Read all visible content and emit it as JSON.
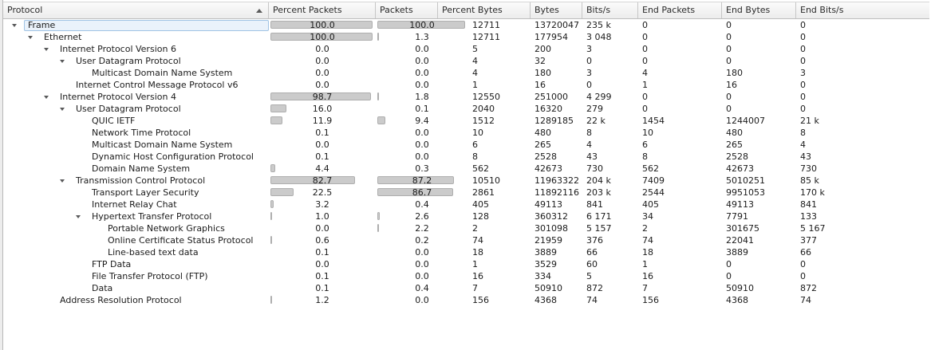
{
  "header": {
    "columns": [
      {
        "label": "Protocol",
        "sorted": "ascending"
      },
      {
        "label": "Percent Packets"
      },
      {
        "label": "Packets"
      },
      {
        "label": "Percent Bytes"
      },
      {
        "label": "Bytes"
      },
      {
        "label": "Bits/s"
      },
      {
        "label": "End Packets"
      },
      {
        "label": "End Bytes"
      },
      {
        "label": "End Bits/s"
      }
    ]
  },
  "colors": {
    "bar_fill": "#cbcbcb",
    "bar_border": "#aeaeae",
    "selection_fill": "#eaf2fb",
    "selection_border": "#a0c3e4",
    "header_border": "#c6c6c6"
  },
  "rows": [
    {
      "name": "Frame",
      "level": 0,
      "expander": true,
      "selected": true,
      "pct_packets": 100.0,
      "pct_packets_text": "100.0",
      "packets": "12711",
      "pct_bytes": 100.0,
      "pct_bytes_text": "100.0",
      "bytes": "13720047",
      "bits_s": "235 k",
      "end_packets": "0",
      "end_bytes": "0",
      "end_bits_s": "0"
    },
    {
      "name": "Ethernet",
      "level": 1,
      "expander": true,
      "selected": false,
      "pct_packets": 100.0,
      "pct_packets_text": "100.0",
      "packets": "12711",
      "pct_bytes": 1.3,
      "pct_bytes_text": "1.3",
      "bytes": "177954",
      "bits_s": "3 048",
      "end_packets": "0",
      "end_bytes": "0",
      "end_bits_s": "0"
    },
    {
      "name": "Internet Protocol Version 6",
      "level": 2,
      "expander": true,
      "selected": false,
      "pct_packets": 0.0,
      "pct_packets_text": "0.0",
      "packets": "5",
      "pct_bytes": 0.0,
      "pct_bytes_text": "0.0",
      "bytes": "200",
      "bits_s": "3",
      "end_packets": "0",
      "end_bytes": "0",
      "end_bits_s": "0"
    },
    {
      "name": "User Datagram Protocol",
      "level": 3,
      "expander": true,
      "selected": false,
      "pct_packets": 0.0,
      "pct_packets_text": "0.0",
      "packets": "4",
      "pct_bytes": 0.0,
      "pct_bytes_text": "0.0",
      "bytes": "32",
      "bits_s": "0",
      "end_packets": "0",
      "end_bytes": "0",
      "end_bits_s": "0"
    },
    {
      "name": "Multicast Domain Name System",
      "level": 4,
      "expander": false,
      "selected": false,
      "pct_packets": 0.0,
      "pct_packets_text": "0.0",
      "packets": "4",
      "pct_bytes": 0.0,
      "pct_bytes_text": "0.0",
      "bytes": "180",
      "bits_s": "3",
      "end_packets": "4",
      "end_bytes": "180",
      "end_bits_s": "3"
    },
    {
      "name": "Internet Control Message Protocol v6",
      "level": 3,
      "expander": false,
      "selected": false,
      "pct_packets": 0.0,
      "pct_packets_text": "0.0",
      "packets": "1",
      "pct_bytes": 0.0,
      "pct_bytes_text": "0.0",
      "bytes": "16",
      "bits_s": "0",
      "end_packets": "1",
      "end_bytes": "16",
      "end_bits_s": "0"
    },
    {
      "name": "Internet Protocol Version 4",
      "level": 2,
      "expander": true,
      "selected": false,
      "pct_packets": 98.7,
      "pct_packets_text": "98.7",
      "packets": "12550",
      "pct_bytes": 1.8,
      "pct_bytes_text": "1.8",
      "bytes": "251000",
      "bits_s": "4 299",
      "end_packets": "0",
      "end_bytes": "0",
      "end_bits_s": "0"
    },
    {
      "name": "User Datagram Protocol",
      "level": 3,
      "expander": true,
      "selected": false,
      "pct_packets": 16.0,
      "pct_packets_text": "16.0",
      "packets": "2040",
      "pct_bytes": 0.1,
      "pct_bytes_text": "0.1",
      "bytes": "16320",
      "bits_s": "279",
      "end_packets": "0",
      "end_bytes": "0",
      "end_bits_s": "0"
    },
    {
      "name": "QUIC IETF",
      "level": 4,
      "expander": false,
      "selected": false,
      "pct_packets": 11.9,
      "pct_packets_text": "11.9",
      "packets": "1512",
      "pct_bytes": 9.4,
      "pct_bytes_text": "9.4",
      "bytes": "1289185",
      "bits_s": "22 k",
      "end_packets": "1454",
      "end_bytes": "1244007",
      "end_bits_s": "21 k"
    },
    {
      "name": "Network Time Protocol",
      "level": 4,
      "expander": false,
      "selected": false,
      "pct_packets": 0.1,
      "pct_packets_text": "0.1",
      "packets": "10",
      "pct_bytes": 0.0,
      "pct_bytes_text": "0.0",
      "bytes": "480",
      "bits_s": "8",
      "end_packets": "10",
      "end_bytes": "480",
      "end_bits_s": "8"
    },
    {
      "name": "Multicast Domain Name System",
      "level": 4,
      "expander": false,
      "selected": false,
      "pct_packets": 0.0,
      "pct_packets_text": "0.0",
      "packets": "6",
      "pct_bytes": 0.0,
      "pct_bytes_text": "0.0",
      "bytes": "265",
      "bits_s": "4",
      "end_packets": "6",
      "end_bytes": "265",
      "end_bits_s": "4"
    },
    {
      "name": "Dynamic Host Configuration Protocol",
      "level": 4,
      "expander": false,
      "selected": false,
      "pct_packets": 0.1,
      "pct_packets_text": "0.1",
      "packets": "8",
      "pct_bytes": 0.0,
      "pct_bytes_text": "0.0",
      "bytes": "2528",
      "bits_s": "43",
      "end_packets": "8",
      "end_bytes": "2528",
      "end_bits_s": "43"
    },
    {
      "name": "Domain Name System",
      "level": 4,
      "expander": false,
      "selected": false,
      "pct_packets": 4.4,
      "pct_packets_text": "4.4",
      "packets": "562",
      "pct_bytes": 0.3,
      "pct_bytes_text": "0.3",
      "bytes": "42673",
      "bits_s": "730",
      "end_packets": "562",
      "end_bytes": "42673",
      "end_bits_s": "730"
    },
    {
      "name": "Transmission Control Protocol",
      "level": 3,
      "expander": true,
      "selected": false,
      "pct_packets": 82.7,
      "pct_packets_text": "82.7",
      "packets": "10510",
      "pct_bytes": 87.2,
      "pct_bytes_text": "87.2",
      "bytes": "11963322",
      "bits_s": "204 k",
      "end_packets": "7409",
      "end_bytes": "5010251",
      "end_bits_s": "85 k"
    },
    {
      "name": "Transport Layer Security",
      "level": 4,
      "expander": false,
      "selected": false,
      "pct_packets": 22.5,
      "pct_packets_text": "22.5",
      "packets": "2861",
      "pct_bytes": 86.7,
      "pct_bytes_text": "86.7",
      "bytes": "11892116",
      "bits_s": "203 k",
      "end_packets": "2544",
      "end_bytes": "9951053",
      "end_bits_s": "170 k"
    },
    {
      "name": "Internet Relay Chat",
      "level": 4,
      "expander": false,
      "selected": false,
      "pct_packets": 3.2,
      "pct_packets_text": "3.2",
      "packets": "405",
      "pct_bytes": 0.4,
      "pct_bytes_text": "0.4",
      "bytes": "49113",
      "bits_s": "841",
      "end_packets": "405",
      "end_bytes": "49113",
      "end_bits_s": "841"
    },
    {
      "name": "Hypertext Transfer Protocol",
      "level": 4,
      "expander": true,
      "selected": false,
      "pct_packets": 1.0,
      "pct_packets_text": "1.0",
      "packets": "128",
      "pct_bytes": 2.6,
      "pct_bytes_text": "2.6",
      "bytes": "360312",
      "bits_s": "6 171",
      "end_packets": "34",
      "end_bytes": "7791",
      "end_bits_s": "133"
    },
    {
      "name": "Portable Network Graphics",
      "level": 5,
      "expander": false,
      "selected": false,
      "pct_packets": 0.0,
      "pct_packets_text": "0.0",
      "packets": "2",
      "pct_bytes": 2.2,
      "pct_bytes_text": "2.2",
      "bytes": "301098",
      "bits_s": "5 157",
      "end_packets": "2",
      "end_bytes": "301675",
      "end_bits_s": "5 167"
    },
    {
      "name": "Online Certificate Status Protocol",
      "level": 5,
      "expander": false,
      "selected": false,
      "pct_packets": 0.6,
      "pct_packets_text": "0.6",
      "packets": "74",
      "pct_bytes": 0.2,
      "pct_bytes_text": "0.2",
      "bytes": "21959",
      "bits_s": "376",
      "end_packets": "74",
      "end_bytes": "22041",
      "end_bits_s": "377"
    },
    {
      "name": "Line-based text data",
      "level": 5,
      "expander": false,
      "selected": false,
      "pct_packets": 0.1,
      "pct_packets_text": "0.1",
      "packets": "18",
      "pct_bytes": 0.0,
      "pct_bytes_text": "0.0",
      "bytes": "3889",
      "bits_s": "66",
      "end_packets": "18",
      "end_bytes": "3889",
      "end_bits_s": "66"
    },
    {
      "name": "FTP Data",
      "level": 4,
      "expander": false,
      "selected": false,
      "pct_packets": 0.0,
      "pct_packets_text": "0.0",
      "packets": "1",
      "pct_bytes": 0.0,
      "pct_bytes_text": "0.0",
      "bytes": "3529",
      "bits_s": "60",
      "end_packets": "1",
      "end_bytes": "0",
      "end_bits_s": "0"
    },
    {
      "name": "File Transfer Protocol (FTP)",
      "level": 4,
      "expander": false,
      "selected": false,
      "pct_packets": 0.1,
      "pct_packets_text": "0.1",
      "packets": "16",
      "pct_bytes": 0.0,
      "pct_bytes_text": "0.0",
      "bytes": "334",
      "bits_s": "5",
      "end_packets": "16",
      "end_bytes": "0",
      "end_bits_s": "0"
    },
    {
      "name": "Data",
      "level": 4,
      "expander": false,
      "selected": false,
      "pct_packets": 0.1,
      "pct_packets_text": "0.1",
      "packets": "7",
      "pct_bytes": 0.4,
      "pct_bytes_text": "0.4",
      "bytes": "50910",
      "bits_s": "872",
      "end_packets": "7",
      "end_bytes": "50910",
      "end_bits_s": "872"
    },
    {
      "name": "Address Resolution Protocol",
      "level": 2,
      "expander": false,
      "selected": false,
      "pct_packets": 1.2,
      "pct_packets_text": "1.2",
      "packets": "156",
      "pct_bytes": 0.0,
      "pct_bytes_text": "0.0",
      "bytes": "4368",
      "bits_s": "74",
      "end_packets": "156",
      "end_bytes": "4368",
      "end_bits_s": "74"
    }
  ]
}
